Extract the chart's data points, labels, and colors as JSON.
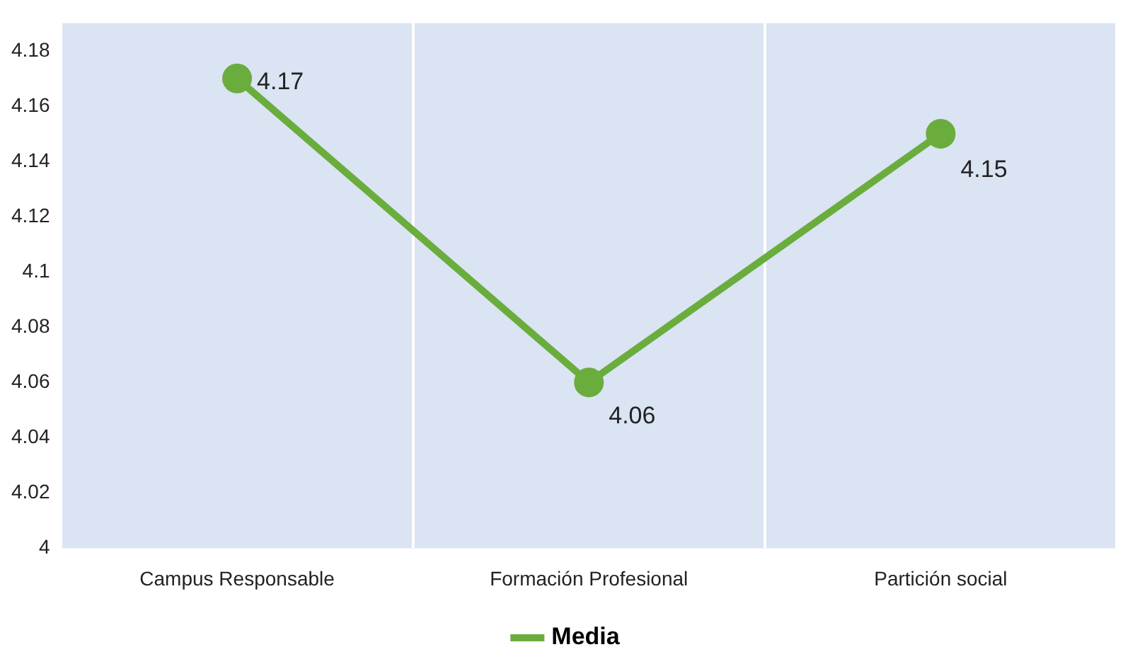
{
  "chart_data": {
    "type": "line",
    "categories": [
      "Campus Responsable",
      "Formación Profesional",
      "Partición social"
    ],
    "series": [
      {
        "name": "Media",
        "color": "#6aad3d",
        "values": [
          4.17,
          4.06,
          4.15
        ]
      }
    ],
    "ylim": [
      4,
      4.19
    ],
    "yticks": [
      4,
      4.02,
      4.04,
      4.06,
      4.08,
      4.1,
      4.12,
      4.14,
      4.16,
      4.18
    ],
    "grid": "x",
    "legend": "bottom",
    "marker": "circle",
    "line_style": "solid",
    "data_labels": true
  }
}
